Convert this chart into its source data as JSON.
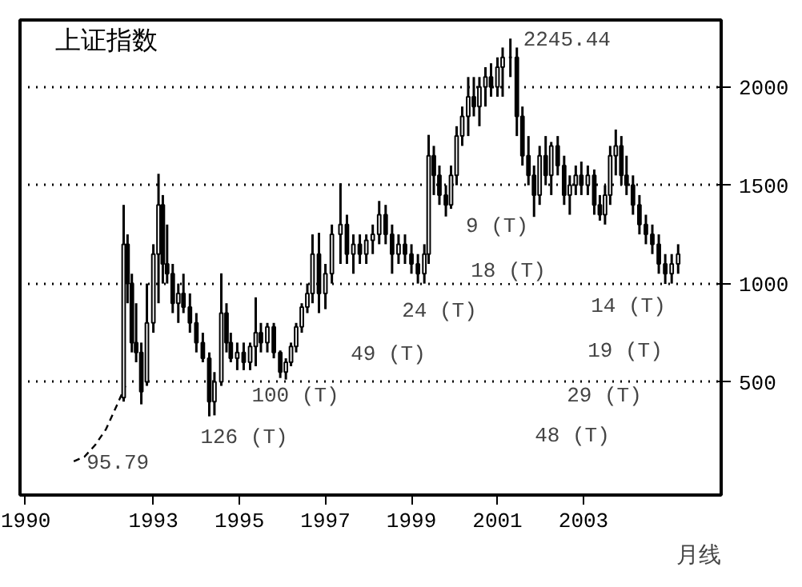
{
  "chart_data": {
    "type": "candlestick",
    "title": "上证指数",
    "x": [
      1992.31,
      1992.4,
      1992.5,
      1992.6,
      1992.72,
      1992.85,
      1993.0,
      1993.12,
      1993.22,
      1993.32,
      1993.45,
      1993.58,
      1993.7,
      1993.85,
      1994.0,
      1994.15,
      1994.3,
      1994.42,
      1994.58,
      1994.7,
      1994.8,
      1994.95,
      1995.1,
      1995.25,
      1995.38,
      1995.5,
      1995.65,
      1995.8,
      1995.95,
      1996.08,
      1996.2,
      1996.32,
      1996.45,
      1996.58,
      1996.7,
      1996.85,
      1997.0,
      1997.15,
      1997.35,
      1997.5,
      1997.65,
      1997.8,
      1997.95,
      1998.1,
      1998.25,
      1998.4,
      1998.55,
      1998.7,
      1998.85,
      1999.0,
      1999.15,
      1999.3,
      1999.4,
      1999.52,
      1999.65,
      1999.8,
      1999.92,
      2000.05,
      2000.18,
      2000.32,
      2000.45,
      2000.58,
      2000.72,
      2000.85,
      2001.0,
      2001.12,
      2001.3,
      2001.45,
      2001.58,
      2001.72,
      2001.85,
      2001.98,
      2002.12,
      2002.25,
      2002.4,
      2002.55,
      2002.68,
      2002.82,
      2002.95,
      2003.1,
      2003.25,
      2003.38,
      2003.5,
      2003.62,
      2003.75,
      2003.88,
      2004.0,
      2004.15,
      2004.3,
      2004.45,
      2004.6,
      2004.75,
      2004.9,
      2005.05,
      2005.2
    ],
    "ohlc": [
      [
        420,
        1400,
        400,
        1200
      ],
      [
        1200,
        1250,
        900,
        1000
      ],
      [
        1000,
        1050,
        650,
        700
      ],
      [
        700,
        900,
        600,
        650
      ],
      [
        650,
        700,
        386,
        450
      ],
      [
        500,
        1000,
        480,
        800
      ],
      [
        800,
        1200,
        750,
        1150
      ],
      [
        1150,
        1558,
        900,
        1400
      ],
      [
        1400,
        1450,
        1000,
        1100
      ],
      [
        1100,
        1300,
        1000,
        1050
      ],
      [
        1050,
        1100,
        850,
        900
      ],
      [
        900,
        1000,
        800,
        950
      ],
      [
        950,
        1050,
        850,
        880
      ],
      [
        880,
        950,
        750,
        800
      ],
      [
        800,
        850,
        650,
        700
      ],
      [
        700,
        750,
        600,
        620
      ],
      [
        620,
        650,
        325,
        400
      ],
      [
        400,
        550,
        330,
        500
      ],
      [
        500,
        1052,
        480,
        850
      ],
      [
        850,
        900,
        650,
        700
      ],
      [
        700,
        750,
        600,
        620
      ],
      [
        620,
        700,
        560,
        650
      ],
      [
        650,
        700,
        560,
        600
      ],
      [
        600,
        700,
        560,
        680
      ],
      [
        680,
        930,
        580,
        750
      ],
      [
        750,
        800,
        650,
        700
      ],
      [
        700,
        800,
        650,
        780
      ],
      [
        780,
        800,
        620,
        650
      ],
      [
        650,
        660,
        520,
        550
      ],
      [
        550,
        620,
        512,
        600
      ],
      [
        600,
        700,
        580,
        680
      ],
      [
        680,
        800,
        650,
        780
      ],
      [
        780,
        900,
        750,
        880
      ],
      [
        880,
        1000,
        850,
        950
      ],
      [
        950,
        1250,
        900,
        1150
      ],
      [
        1150,
        1258,
        850,
        950
      ],
      [
        950,
        1100,
        870,
        1050
      ],
      [
        1050,
        1300,
        1000,
        1250
      ],
      [
        1250,
        1510,
        1100,
        1300
      ],
      [
        1300,
        1350,
        1100,
        1150
      ],
      [
        1150,
        1250,
        1050,
        1200
      ],
      [
        1200,
        1250,
        1100,
        1150
      ],
      [
        1150,
        1250,
        1100,
        1220
      ],
      [
        1220,
        1300,
        1150,
        1250
      ],
      [
        1250,
        1420,
        1200,
        1350
      ],
      [
        1350,
        1400,
        1200,
        1250
      ],
      [
        1250,
        1300,
        1050,
        1150
      ],
      [
        1150,
        1250,
        1100,
        1200
      ],
      [
        1200,
        1250,
        1100,
        1150
      ],
      [
        1150,
        1200,
        1050,
        1100
      ],
      [
        1100,
        1150,
        1000,
        1050
      ],
      [
        1050,
        1200,
        1000,
        1150
      ],
      [
        1150,
        1756,
        1100,
        1650
      ],
      [
        1650,
        1700,
        1450,
        1550
      ],
      [
        1550,
        1600,
        1400,
        1450
      ],
      [
        1450,
        1500,
        1341,
        1400
      ],
      [
        1400,
        1600,
        1380,
        1550
      ],
      [
        1550,
        1800,
        1500,
        1750
      ],
      [
        1750,
        1900,
        1700,
        1850
      ],
      [
        1850,
        2050,
        1750,
        1950
      ],
      [
        1950,
        2050,
        1850,
        1900
      ],
      [
        1900,
        2050,
        1800,
        2000
      ],
      [
        2000,
        2100,
        1900,
        2050
      ],
      [
        2050,
        2120,
        1950,
        2000
      ],
      [
        2000,
        2150,
        1950,
        2100
      ],
      [
        2100,
        2200,
        1950,
        2150
      ],
      [
        2150,
        2245.44,
        2050,
        2150
      ],
      [
        2150,
        2200,
        1750,
        1850
      ],
      [
        1850,
        1900,
        1600,
        1650
      ],
      [
        1650,
        1750,
        1500,
        1550
      ],
      [
        1550,
        1600,
        1339,
        1450
      ],
      [
        1450,
        1700,
        1400,
        1650
      ],
      [
        1650,
        1750,
        1500,
        1550
      ],
      [
        1550,
        1720,
        1450,
        1700
      ],
      [
        1700,
        1750,
        1550,
        1600
      ],
      [
        1600,
        1650,
        1400,
        1450
      ],
      [
        1450,
        1550,
        1350,
        1500
      ],
      [
        1500,
        1600,
        1450,
        1550
      ],
      [
        1550,
        1620,
        1450,
        1500
      ],
      [
        1500,
        1600,
        1450,
        1550
      ],
      [
        1550,
        1580,
        1350,
        1400
      ],
      [
        1400,
        1450,
        1320,
        1350
      ],
      [
        1350,
        1500,
        1300,
        1450
      ],
      [
        1450,
        1700,
        1400,
        1650
      ],
      [
        1650,
        1783,
        1550,
        1700
      ],
      [
        1700,
        1750,
        1500,
        1550
      ],
      [
        1550,
        1650,
        1450,
        1500
      ],
      [
        1500,
        1550,
        1350,
        1400
      ],
      [
        1400,
        1450,
        1250,
        1300
      ],
      [
        1300,
        1350,
        1200,
        1250
      ],
      [
        1250,
        1300,
        1150,
        1200
      ],
      [
        1200,
        1250,
        1050,
        1100
      ],
      [
        1100,
        1150,
        998,
        1050
      ],
      [
        1050,
        1150,
        1000,
        1100
      ],
      [
        1100,
        1200,
        1050,
        1150
      ]
    ],
    "color": "#000000",
    "series": [
      {
        "type": "line",
        "color": "#000000",
        "line_style": "dashed",
        "x": [
          1991.15,
          1991.4,
          1991.65,
          1991.9,
          1992.15,
          1992.35
        ],
        "values": [
          96,
          120,
          180,
          260,
          380,
          480
        ]
      }
    ],
    "xlim": [
      1989.9,
      2006.2
    ],
    "ylim": [
      -75,
      2340
    ],
    "xticks": [
      1990,
      1993,
      1995,
      1997,
      1999,
      2001,
      2003
    ],
    "yticks": [
      500,
      1000,
      1500,
      2000
    ],
    "grid": "y",
    "annotations": [
      {
        "text": "95.79",
        "x": 1991.15,
        "y": 95.79
      },
      {
        "text": "2245.44",
        "x": 2001.3,
        "y": 2245.44
      },
      "126 (T)",
      "100 (T)",
      "49 (T)",
      "24 (T)",
      "18 (T)",
      "9 (T)",
      "14 (T)",
      "19 (T)",
      "29 (T)",
      "48 (T)",
      "月线"
    ]
  }
}
